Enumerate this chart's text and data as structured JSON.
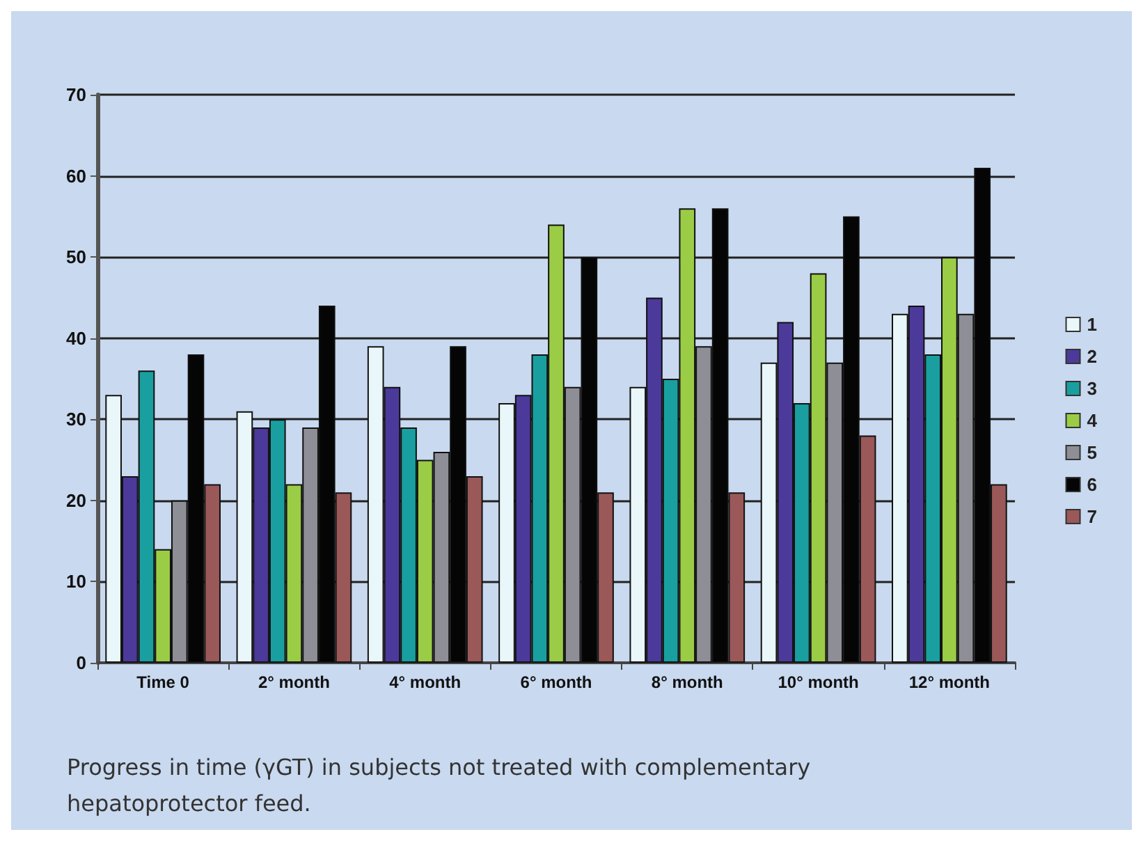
{
  "chart_data": {
    "type": "bar",
    "categories": [
      "Time 0",
      "2° month",
      "4° month",
      "6° month",
      "8° month",
      "10° month",
      "12° month"
    ],
    "series": [
      {
        "name": "1",
        "color": "#eaf7fa",
        "values": [
          33,
          31,
          39,
          32,
          34,
          37,
          43
        ]
      },
      {
        "name": "2",
        "color": "#4b3a9a",
        "values": [
          23,
          29,
          34,
          33,
          45,
          42,
          44
        ]
      },
      {
        "name": "3",
        "color": "#1a9fa0",
        "values": [
          36,
          30,
          29,
          38,
          35,
          32,
          38
        ]
      },
      {
        "name": "4",
        "color": "#9acd45",
        "values": [
          14,
          22,
          25,
          54,
          56,
          48,
          50
        ]
      },
      {
        "name": "5",
        "color": "#8e8e96",
        "values": [
          20,
          29,
          26,
          34,
          39,
          37,
          43
        ]
      },
      {
        "name": "6",
        "color": "#050505",
        "values": [
          38,
          44,
          39,
          50,
          56,
          55,
          61
        ]
      },
      {
        "name": "7",
        "color": "#9a5858",
        "values": [
          22,
          21,
          23,
          21,
          21,
          28,
          22
        ]
      }
    ],
    "ylim": [
      0,
      70
    ],
    "yticks": [
      0,
      10,
      20,
      30,
      40,
      50,
      60,
      70
    ],
    "grid": "y",
    "legend": "right",
    "annotations": [
      "Progress in time (γGT) in subjects not treated with complementary hepatoprotector feed."
    ]
  }
}
